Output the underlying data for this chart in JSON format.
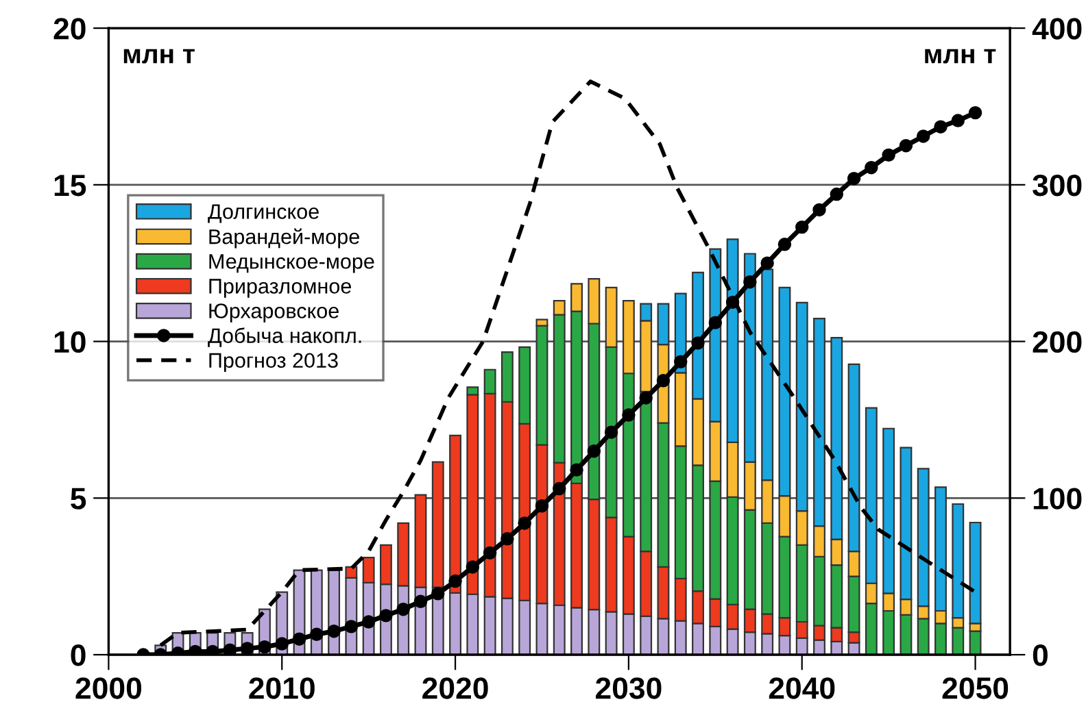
{
  "chart_data": {
    "type": "bar",
    "stacked": true,
    "x": [
      2003,
      2004,
      2005,
      2006,
      2007,
      2008,
      2009,
      2010,
      2011,
      2012,
      2013,
      2014,
      2015,
      2016,
      2017,
      2018,
      2019,
      2020,
      2021,
      2022,
      2023,
      2024,
      2025,
      2026,
      2027,
      2028,
      2029,
      2030,
      2031,
      2032,
      2033,
      2034,
      2035,
      2036,
      2037,
      2038,
      2039,
      2040,
      2041,
      2042,
      2043,
      2044,
      2045,
      2046,
      2047,
      2048,
      2049,
      2050
    ],
    "xlim": [
      2000,
      2052
    ],
    "xticks": [
      2000,
      2010,
      2020,
      2030,
      2040,
      2050
    ],
    "ylim": [
      0,
      20
    ],
    "yticks": [
      0,
      5,
      10,
      15,
      20
    ],
    "y2lim": [
      0,
      400
    ],
    "y2ticks": [
      0,
      100,
      200,
      300,
      400
    ],
    "grid": "y",
    "legend": "top left",
    "annotations": [
      "млн т",
      "млн т"
    ],
    "series": [
      {
        "name": "Юрхаровское",
        "color": "#b9a6d9",
        "values": [
          0.3,
          0.7,
          0.7,
          0.7,
          0.7,
          0.7,
          1.45,
          2.0,
          2.7,
          2.7,
          2.7,
          2.45,
          2.3,
          2.25,
          2.2,
          2.15,
          2.15,
          1.97,
          1.93,
          1.85,
          1.8,
          1.73,
          1.64,
          1.58,
          1.5,
          1.44,
          1.37,
          1.3,
          1.23,
          1.15,
          1.08,
          1.0,
          0.9,
          0.82,
          0.72,
          0.67,
          0.61,
          0.53,
          0.47,
          0.42,
          0.38,
          null,
          null,
          null,
          null,
          null,
          null,
          null
        ]
      },
      {
        "name": "Приразломное",
        "color": "#ee3a1e",
        "values": [
          null,
          null,
          null,
          null,
          null,
          null,
          null,
          null,
          null,
          null,
          null,
          0.35,
          0.8,
          1.25,
          2.0,
          2.95,
          4.0,
          5.03,
          6.37,
          6.48,
          6.27,
          5.64,
          5.06,
          4.55,
          3.97,
          3.52,
          3.01,
          2.47,
          2.07,
          1.65,
          1.35,
          1.03,
          0.88,
          0.78,
          0.73,
          0.63,
          0.57,
          0.52,
          0.46,
          0.44,
          0.34,
          null,
          null,
          null,
          null,
          null,
          null,
          null
        ]
      },
      {
        "name": "Медынское-море",
        "color": "#2aa845",
        "values": [
          null,
          null,
          null,
          null,
          null,
          null,
          null,
          null,
          null,
          null,
          null,
          null,
          null,
          null,
          null,
          null,
          null,
          null,
          0.24,
          0.77,
          1.59,
          2.45,
          3.8,
          4.72,
          5.49,
          5.61,
          5.44,
          5.21,
          5.1,
          4.6,
          4.23,
          4.02,
          3.76,
          3.43,
          3.17,
          2.9,
          2.59,
          2.45,
          2.2,
          2.0,
          1.78,
          1.64,
          1.4,
          1.27,
          1.15,
          1.0,
          0.86,
          0.75
        ]
      },
      {
        "name": "Варандей-море",
        "color": "#f9b930",
        "values": [
          null,
          null,
          null,
          null,
          null,
          null,
          null,
          null,
          null,
          null,
          null,
          null,
          null,
          null,
          null,
          null,
          null,
          null,
          null,
          null,
          null,
          null,
          0.2,
          0.45,
          0.88,
          1.43,
          1.9,
          2.32,
          2.26,
          2.5,
          2.34,
          2.12,
          1.9,
          1.75,
          1.53,
          1.37,
          1.3,
          1.09,
          0.98,
          0.82,
          0.8,
          0.64,
          0.56,
          0.5,
          0.4,
          0.4,
          0.32,
          0.25
        ]
      },
      {
        "name": "Долгинское",
        "color": "#1aa6e0",
        "values": [
          null,
          null,
          null,
          null,
          null,
          null,
          null,
          null,
          null,
          null,
          null,
          null,
          null,
          null,
          null,
          null,
          null,
          null,
          null,
          null,
          null,
          null,
          null,
          null,
          null,
          null,
          null,
          null,
          0.54,
          1.3,
          2.53,
          4.03,
          5.51,
          6.48,
          6.65,
          6.73,
          6.65,
          6.65,
          6.62,
          6.44,
          5.97,
          5.6,
          5.26,
          4.84,
          4.39,
          3.95,
          3.63,
          3.22
        ]
      },
      {
        "name": "Добыча накопл.",
        "type": "line",
        "axis": "y2",
        "color": "#000000",
        "marker": "circle",
        "line_style": "solid",
        "x": [
          2002,
          2003,
          2004,
          2005,
          2006,
          2007,
          2008,
          2009,
          2010,
          2011,
          2012,
          2013,
          2014,
          2015,
          2016,
          2017,
          2018,
          2019,
          2020,
          2021,
          2022,
          2023,
          2024,
          2025,
          2026,
          2027,
          2028,
          2029,
          2030,
          2031,
          2032,
          2033,
          2034,
          2035,
          2036,
          2037,
          2038,
          2039,
          2040,
          2041,
          2042,
          2043,
          2044,
          2045,
          2046,
          2047,
          2048,
          2049,
          2050
        ],
        "values": [
          0,
          0,
          1,
          2,
          2,
          3,
          4,
          5,
          7,
          10,
          13,
          15,
          18,
          21,
          25,
          29,
          34,
          39,
          47,
          56,
          65,
          74,
          84,
          95,
          106,
          118,
          130,
          142,
          153,
          164,
          175,
          187,
          199,
          212,
          225,
          238,
          250,
          262,
          273,
          284,
          294,
          304,
          311,
          319,
          325,
          331,
          337,
          341,
          346
        ]
      },
      {
        "name": "Прогноз 2013",
        "type": "line",
        "color": "#000000",
        "marker": "none",
        "line_style": "dashed",
        "x": [
          2003,
          2004,
          2008,
          2010,
          2011,
          2014,
          2015,
          2016,
          2017,
          2018,
          2019.6,
          2021.6,
          2024.3,
          2025.6,
          2027.8,
          2029.8,
          2031.8,
          2032.8,
          2034.6,
          2037,
          2039.5,
          2041.9,
          2043.4,
          2044.4,
          2046.9,
          2050
        ],
        "values": [
          0.3,
          0.7,
          0.8,
          2.0,
          2.7,
          2.75,
          3.3,
          4.3,
          5.2,
          6.2,
          8.2,
          10.0,
          14.4,
          17.0,
          18.3,
          17.75,
          16.3,
          14.9,
          13.0,
          10.3,
          8.25,
          6.2,
          4.7,
          4.0,
          3.1,
          2.0
        ]
      }
    ]
  }
}
